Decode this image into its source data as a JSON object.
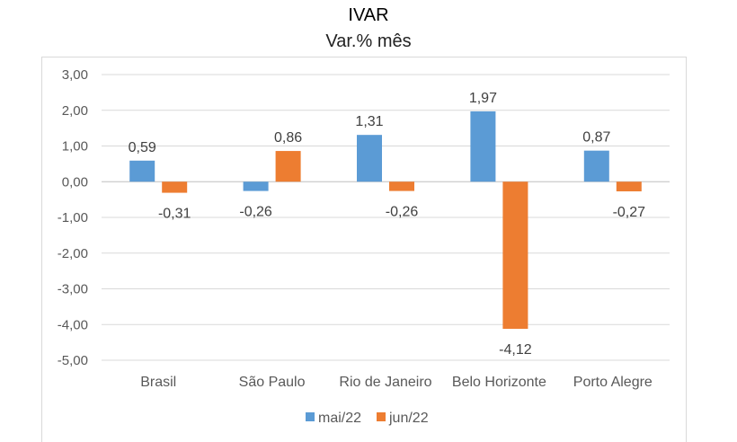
{
  "chart_data": {
    "type": "bar",
    "title": "IVAR",
    "subtitle": "Var.% mês",
    "categories": [
      "Brasil",
      "São Paulo",
      "Rio de Janeiro",
      "Belo Horizonte",
      "Porto Alegre"
    ],
    "series": [
      {
        "name": "mai/22",
        "color": "#5b9bd5",
        "values": [
          0.59,
          -0.26,
          1.31,
          1.97,
          0.87
        ],
        "labels": [
          "0,59",
          "-0,26",
          "1,31",
          "1,97",
          "0,87"
        ]
      },
      {
        "name": "jun/22",
        "color": "#ed7d31",
        "values": [
          -0.31,
          0.86,
          -0.26,
          -4.12,
          -0.27
        ],
        "labels": [
          "-0,31",
          "0,86",
          "-0,26",
          "-4,12",
          "-0,27"
        ]
      }
    ],
    "ylim": [
      -5,
      3
    ],
    "yticks": [
      3,
      2,
      1,
      0,
      -1,
      -2,
      -3,
      -4,
      -5
    ],
    "ytick_labels": [
      "3,00",
      "2,00",
      "1,00",
      "0,00",
      "-1,00",
      "-2,00",
      "-3,00",
      "-4,00",
      "-5,00"
    ],
    "grid": true,
    "legend_position": "bottom",
    "xlabel": "",
    "ylabel": ""
  }
}
